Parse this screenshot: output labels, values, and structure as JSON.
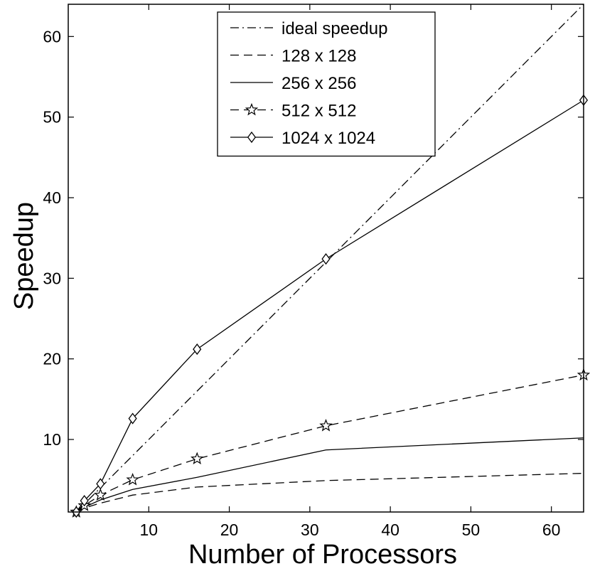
{
  "chart_data": {
    "type": "line",
    "title": "",
    "xlabel": "Number of Processors",
    "ylabel": "Speedup",
    "xlim": [
      0,
      64
    ],
    "ylim": [
      1,
      64
    ],
    "xticks": [
      10,
      20,
      30,
      40,
      50,
      60
    ],
    "yticks": [
      10,
      20,
      30,
      40,
      50,
      60
    ],
    "grid": false,
    "legend_position": "top-center",
    "series": [
      {
        "name": "ideal speedup",
        "style": "dashdot",
        "marker": "none",
        "x": [
          1,
          64
        ],
        "y": [
          1,
          64
        ]
      },
      {
        "name": "128 x 128",
        "style": "dashed",
        "marker": "none",
        "x": [
          1,
          2,
          4,
          8,
          16,
          32,
          64
        ],
        "y": [
          1,
          1.5,
          2.1,
          3.1,
          4.1,
          4.9,
          5.8
        ]
      },
      {
        "name": "256 x 256",
        "style": "solid",
        "marker": "none",
        "x": [
          1,
          2,
          4,
          8,
          16,
          32,
          64
        ],
        "y": [
          1,
          1.6,
          2.5,
          3.8,
          5.3,
          8.7,
          10.2
        ]
      },
      {
        "name": "512 x 512",
        "style": "dashed",
        "marker": "star",
        "x": [
          1,
          2,
          4,
          8,
          16,
          32,
          64
        ],
        "y": [
          1,
          1.8,
          3.1,
          5.0,
          7.6,
          11.7,
          18.0
        ]
      },
      {
        "name": "1024 x 1024",
        "style": "solid",
        "marker": "diamond",
        "x": [
          1,
          2,
          4,
          8,
          16,
          32,
          64
        ],
        "y": [
          1,
          2.4,
          4.5,
          12.6,
          21.2,
          32.4,
          52.1
        ]
      }
    ]
  }
}
